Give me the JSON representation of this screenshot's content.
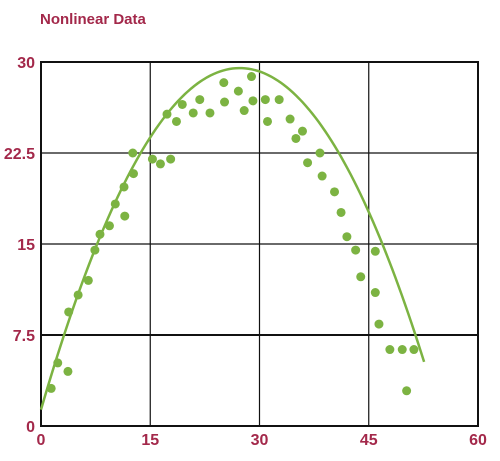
{
  "chart_data": {
    "type": "scatter",
    "title": "Nonlinear Data",
    "xlabel": "",
    "ylabel": "",
    "xlim": [
      0,
      60
    ],
    "ylim": [
      0,
      30
    ],
    "x_ticks": [
      "0",
      "15",
      "30",
      "45",
      "60"
    ],
    "y_ticks": [
      "0",
      "7.5",
      "15",
      "22.5",
      "30"
    ],
    "x_tick_values": [
      0,
      15,
      30,
      45,
      60
    ],
    "y_tick_values": [
      0,
      7.5,
      15,
      22.5,
      30
    ],
    "grid": true,
    "legend": "none",
    "series": [
      {
        "type": "scatter",
        "points": [
          [
            1.4,
            3.1
          ],
          [
            2.3,
            5.2
          ],
          [
            3.7,
            4.5
          ],
          [
            3.8,
            9.4
          ],
          [
            5.1,
            10.8
          ],
          [
            6.5,
            12.0
          ],
          [
            7.4,
            14.5
          ],
          [
            8.1,
            15.8
          ],
          [
            9.4,
            16.5
          ],
          [
            10.2,
            18.3
          ],
          [
            11.4,
            19.7
          ],
          [
            11.5,
            17.3
          ],
          [
            12.6,
            22.5
          ],
          [
            12.7,
            20.8
          ],
          [
            15.3,
            22.0
          ],
          [
            16.4,
            21.6
          ],
          [
            17.3,
            25.7
          ],
          [
            17.8,
            22.0
          ],
          [
            18.6,
            25.1
          ],
          [
            19.4,
            26.5
          ],
          [
            20.9,
            25.8
          ],
          [
            21.8,
            26.9
          ],
          [
            23.2,
            25.8
          ],
          [
            25.1,
            28.3
          ],
          [
            25.2,
            26.7
          ],
          [
            27.1,
            27.6
          ],
          [
            27.9,
            26.0
          ],
          [
            28.9,
            28.8
          ],
          [
            29.1,
            26.8
          ],
          [
            30.8,
            26.9
          ],
          [
            31.1,
            25.1
          ],
          [
            32.7,
            26.9
          ],
          [
            34.2,
            25.3
          ],
          [
            35.0,
            23.7
          ],
          [
            35.9,
            24.3
          ],
          [
            36.6,
            21.7
          ],
          [
            38.3,
            22.5
          ],
          [
            38.6,
            20.6
          ],
          [
            40.3,
            19.3
          ],
          [
            41.2,
            17.6
          ],
          [
            42.0,
            15.6
          ],
          [
            43.2,
            14.5
          ],
          [
            43.9,
            12.3
          ],
          [
            45.9,
            14.4
          ],
          [
            45.9,
            11.0
          ],
          [
            46.4,
            8.4
          ],
          [
            47.9,
            6.3
          ],
          [
            49.6,
            6.3
          ],
          [
            50.2,
            2.9
          ],
          [
            51.2,
            6.3
          ]
        ],
        "color": "#7cb342"
      },
      {
        "type": "line",
        "curve": "quadratic",
        "coefficients": {
          "a": -0.0378,
          "b": 2.063,
          "c": 1.35
        },
        "x_range": [
          0,
          52.6
        ],
        "color": "#7cb342"
      }
    ],
    "colors": {
      "title": "#a3284a",
      "ticks": "#a3284a",
      "grid": "#111111",
      "axis_frame": "#111111"
    }
  }
}
